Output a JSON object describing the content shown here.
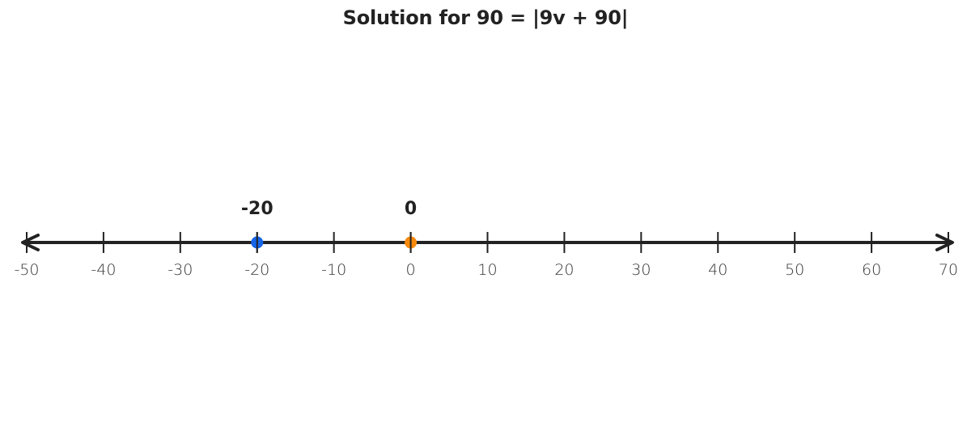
{
  "chart_data": {
    "type": "number_line",
    "title": "Solution for 90 = |9v + 90|",
    "xlim": [
      -50,
      70
    ],
    "tick_step": 10,
    "ticks": [
      -50,
      -40,
      -30,
      -20,
      -10,
      0,
      10,
      20,
      30,
      40,
      50,
      60,
      70
    ],
    "tick_labels": [
      "-50",
      "-40",
      "-30",
      "-20",
      "-10",
      "0",
      "10",
      "20",
      "30",
      "40",
      "50",
      "60",
      "70"
    ],
    "arrows": "both",
    "points": [
      {
        "value": -20,
        "label": "-20",
        "color": "#1565e8"
      },
      {
        "value": 0,
        "label": "0",
        "color": "#f7890c"
      }
    ],
    "grid": false
  },
  "colors": {
    "axis": "#222222",
    "background": "#ffffff"
  }
}
